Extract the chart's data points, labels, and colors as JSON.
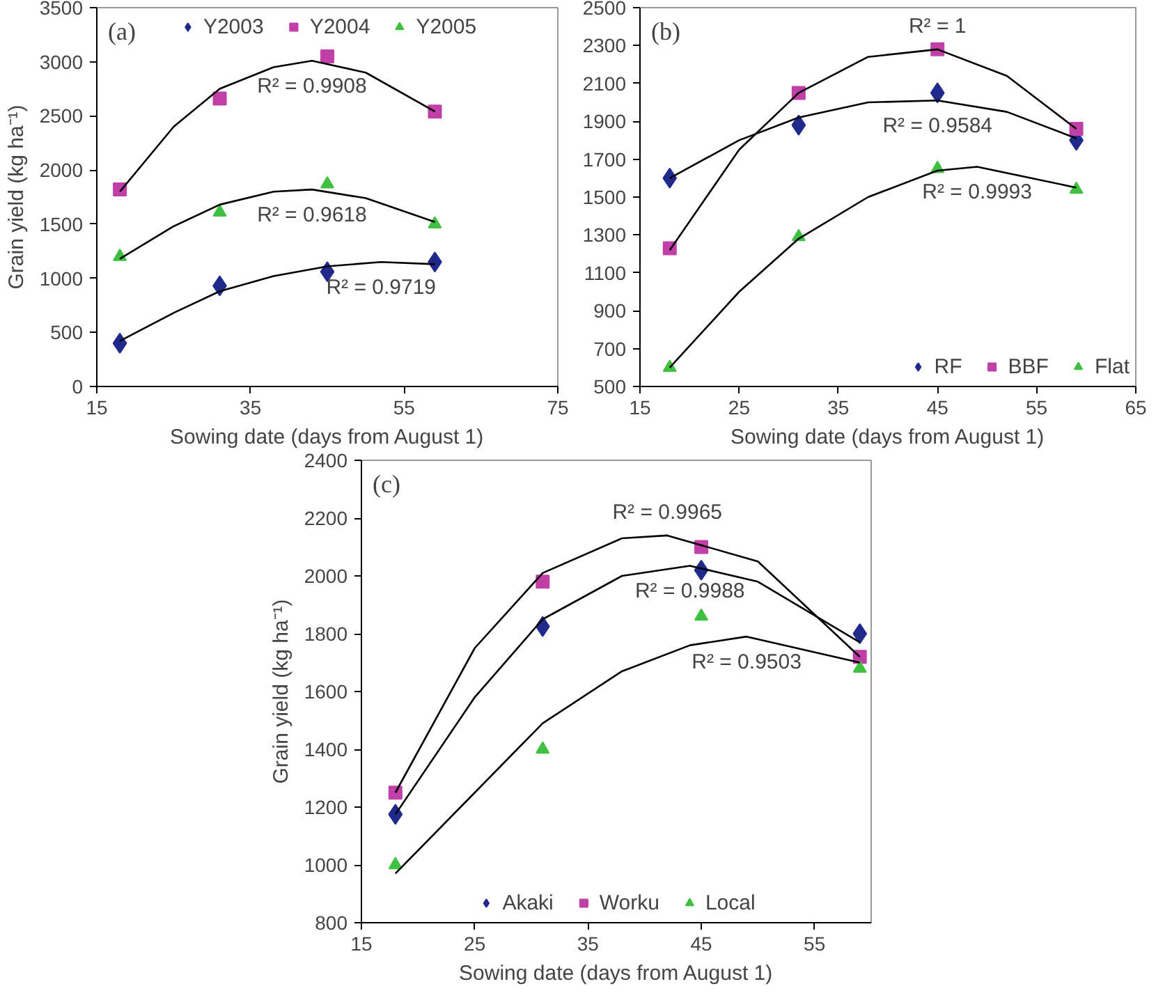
{
  "chart_data": [
    {
      "type": "scatter",
      "xlabel": "Sowing date (days from August 1)",
      "ylabel": "Grain yield (kg ha⁻¹)",
      "xlim": [
        15,
        75
      ],
      "xticks": [
        15,
        35,
        55,
        75
      ],
      "ylim": [
        0,
        3500
      ],
      "yticks": [
        0,
        500,
        1000,
        1500,
        2000,
        2500,
        3000,
        3500
      ],
      "grid": false,
      "legend": "top",
      "x": [
        18,
        31,
        45,
        59
      ],
      "annotations": [
        "(a)",
        "R² = 0.9908",
        "R² = 0.9618",
        "R² = 0.9719"
      ],
      "series": [
        {
          "name": "Y2003",
          "color": "#1f2a8c",
          "marker": "diamond",
          "values": [
            400,
            930,
            1060,
            1150
          ]
        },
        {
          "name": "Y2004",
          "color": "#c040a8",
          "marker": "square",
          "values": [
            1820,
            2660,
            3050,
            2540
          ]
        },
        {
          "name": "Y2005",
          "color": "#40c040",
          "marker": "triangle",
          "values": [
            1200,
            1610,
            1870,
            1500
          ]
        },
        {
          "type": "line",
          "color": "#000000",
          "marker": "none",
          "x": [
            18,
            25,
            31,
            38,
            43,
            50,
            59
          ],
          "values": [
            1800,
            2400,
            2750,
            2950,
            3010,
            2900,
            2540
          ]
        },
        {
          "type": "line",
          "color": "#000000",
          "marker": "none",
          "x": [
            18,
            25,
            31,
            38,
            43,
            50,
            59
          ],
          "values": [
            1180,
            1480,
            1680,
            1800,
            1820,
            1740,
            1520
          ]
        },
        {
          "type": "line",
          "color": "#000000",
          "marker": "none",
          "x": [
            18,
            25,
            31,
            38,
            45,
            52,
            59
          ],
          "values": [
            420,
            680,
            880,
            1020,
            1110,
            1150,
            1130
          ]
        }
      ]
    },
    {
      "type": "scatter",
      "xlabel": "Sowing date (days from August 1)",
      "xlim": [
        15,
        65
      ],
      "xticks": [
        15,
        25,
        35,
        45,
        55,
        65
      ],
      "ylim": [
        500,
        2500
      ],
      "yticks": [
        500,
        700,
        900,
        1100,
        1300,
        1500,
        1700,
        1900,
        2100,
        2300,
        2500
      ],
      "grid": false,
      "legend": "bottom right",
      "x": [
        18,
        31,
        45,
        59
      ],
      "annotations": [
        "(b)",
        "R² = 1",
        "R² = 0.9584",
        "R² = 0.9993"
      ],
      "series": [
        {
          "name": "RF",
          "color": "#1f2a8c",
          "marker": "diamond",
          "values": [
            1600,
            1880,
            2050,
            1800
          ]
        },
        {
          "name": "BBF",
          "color": "#c040a8",
          "marker": "square",
          "values": [
            1230,
            2050,
            2280,
            1860
          ]
        },
        {
          "name": "Flat",
          "color": "#40c040",
          "marker": "triangle",
          "values": [
            600,
            1290,
            1650,
            1540
          ]
        },
        {
          "type": "line",
          "color": "#000000",
          "marker": "none",
          "x": [
            18,
            25,
            31,
            38,
            45,
            52,
            59
          ],
          "values": [
            1220,
            1750,
            2050,
            2240,
            2280,
            2140,
            1860
          ]
        },
        {
          "type": "line",
          "color": "#000000",
          "marker": "none",
          "x": [
            18,
            25,
            31,
            38,
            45,
            52,
            59
          ],
          "values": [
            1600,
            1800,
            1920,
            2000,
            2010,
            1950,
            1810
          ]
        },
        {
          "type": "line",
          "color": "#000000",
          "marker": "none",
          "x": [
            18,
            25,
            31,
            38,
            45,
            49,
            59
          ],
          "values": [
            600,
            1000,
            1280,
            1500,
            1640,
            1660,
            1550
          ]
        }
      ]
    },
    {
      "type": "scatter",
      "xlabel": "Sowing date (days from August 1)",
      "ylabel": "Grain yield (kg ha⁻¹)",
      "xlim": [
        15,
        60
      ],
      "xticks": [
        15,
        25,
        35,
        45,
        55
      ],
      "ylim": [
        800,
        2400
      ],
      "yticks": [
        800,
        1000,
        1200,
        1400,
        1600,
        1800,
        2000,
        2200,
        2400
      ],
      "grid": false,
      "legend": "bottom",
      "x": [
        18,
        31,
        45,
        59
      ],
      "annotations": [
        "(c)",
        "R² = 0.9965",
        "R² = 0.9988",
        "R² = 0.9503"
      ],
      "series": [
        {
          "name": "Akaki",
          "color": "#1f2a8c",
          "marker": "diamond",
          "values": [
            1175,
            1825,
            2020,
            1800
          ]
        },
        {
          "name": "Worku",
          "color": "#c040a8",
          "marker": "square",
          "values": [
            1250,
            1980,
            2100,
            1720
          ]
        },
        {
          "name": "Local",
          "color": "#40c040",
          "marker": "triangle",
          "values": [
            1000,
            1400,
            1860,
            1680
          ]
        },
        {
          "type": "line",
          "color": "#000000",
          "marker": "none",
          "x": [
            18,
            25,
            31,
            38,
            42,
            50,
            59
          ],
          "values": [
            1250,
            1750,
            2010,
            2130,
            2140,
            2050,
            1720
          ]
        },
        {
          "type": "line",
          "color": "#000000",
          "marker": "none",
          "x": [
            18,
            25,
            31,
            38,
            44,
            50,
            59
          ],
          "values": [
            1175,
            1580,
            1850,
            2000,
            2035,
            1980,
            1770
          ]
        },
        {
          "type": "line",
          "color": "#000000",
          "marker": "none",
          "x": [
            18,
            25,
            31,
            38,
            44,
            49,
            59
          ],
          "values": [
            970,
            1250,
            1490,
            1670,
            1760,
            1790,
            1700
          ]
        }
      ]
    }
  ]
}
